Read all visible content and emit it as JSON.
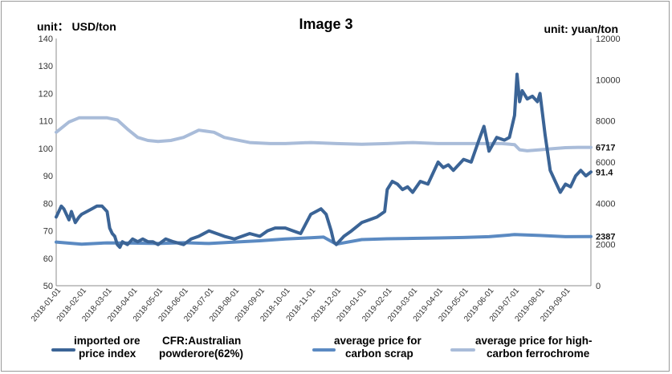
{
  "chart_data": {
    "type": "line",
    "title": "Image 3",
    "left_unit": "unit：  USD/ton",
    "right_unit": "unit: yuan/ton",
    "left_axis": {
      "min": 50,
      "max": 140,
      "step": 10,
      "ticks": [
        "140",
        "130",
        "120",
        "110",
        "100",
        "90",
        "80",
        "70",
        "60",
        "50"
      ]
    },
    "right_axis": {
      "min": 0,
      "max": 12000,
      "step": 2000,
      "ticks": [
        "12000",
        "10000",
        "8000",
        "6000",
        "4000",
        "2000",
        "0"
      ]
    },
    "categories": [
      "2018-01-01",
      "2018-02-01",
      "2018-03-01",
      "2018-04-01",
      "2018-05-01",
      "2018-06-01",
      "2018-07-01",
      "2018-08-01",
      "2018-09-01",
      "2018-10-01",
      "2018-11-01",
      "2018-12-01",
      "2019-01-01",
      "2019-02-01",
      "2019-03-01",
      "2019-04-01",
      "2019-05-01",
      "2019-06-01",
      "2019-07-01",
      "2019-08-01",
      "2019-09-01"
    ],
    "series": [
      {
        "name": "imported ore price index",
        "legend_lines": [
          "imported ore",
          "price index"
        ],
        "axis": "left",
        "color": "#3b6496",
        "end_label": "91.4",
        "x": [
          0.0,
          0.1,
          0.2,
          0.3,
          0.4,
          0.5,
          0.6,
          0.75,
          0.9,
          1.0,
          1.2,
          1.4,
          1.6,
          1.8,
          2.0,
          2.1,
          2.2,
          2.3,
          2.4,
          2.5,
          2.6,
          2.8,
          3.0,
          3.2,
          3.4,
          3.6,
          3.8,
          4.0,
          4.3,
          4.6,
          5.0,
          5.3,
          5.6,
          6.0,
          6.3,
          6.6,
          7.0,
          7.3,
          7.6,
          8.0,
          8.3,
          8.6,
          9.0,
          9.3,
          9.6,
          10.0,
          10.2,
          10.4,
          10.6,
          10.8,
          10.9,
          11.0,
          11.1,
          11.3,
          11.6,
          12.0,
          12.3,
          12.6,
          12.9,
          13.0,
          13.2,
          13.4,
          13.6,
          13.8,
          14.0,
          14.3,
          14.6,
          15.0,
          15.2,
          15.4,
          15.6,
          16.0,
          16.3,
          16.6,
          16.8,
          17.0,
          17.3,
          17.6,
          17.8,
          18.0,
          18.1,
          18.2,
          18.3,
          18.5,
          18.7,
          18.9,
          19.0,
          19.2,
          19.4,
          19.6,
          19.8,
          20.0,
          20.2,
          20.4,
          20.6,
          20.8,
          21.0
        ],
        "values": [
          75,
          77,
          79,
          78,
          76,
          74,
          77,
          73,
          75,
          76,
          77,
          78,
          79,
          79,
          77,
          71,
          69,
          68,
          65,
          64,
          66,
          65,
          67,
          66,
          67,
          66,
          66,
          65,
          67,
          66,
          65,
          67,
          68,
          70,
          69,
          68,
          67,
          68,
          69,
          68,
          70,
          71,
          71,
          70,
          69,
          76,
          77,
          78,
          76,
          70,
          66,
          65,
          66,
          68,
          70,
          73,
          74,
          75,
          77,
          85,
          88,
          87,
          85,
          86,
          84,
          88,
          87,
          95,
          93,
          94,
          92,
          96,
          95,
          103,
          108,
          99,
          104,
          103,
          104,
          112,
          127,
          117,
          121,
          118,
          119,
          117,
          120,
          105,
          92,
          88,
          84,
          87,
          86,
          90,
          92,
          90,
          91.4
        ]
      },
      {
        "name": "CFR:Australian powderore(62%)",
        "legend_lines": [
          "CFR:Australian",
          "powderore(62%)"
        ],
        "axis": "left"
      },
      {
        "name": "average price for carbon scrap",
        "legend_lines": [
          "average price for",
          "carbon scrap"
        ],
        "axis": "right",
        "color": "#5b8ac2",
        "end_label": "2387",
        "x": [
          0,
          1,
          2,
          3,
          4,
          5,
          6,
          7,
          8,
          9,
          10,
          10.5,
          11,
          12,
          13,
          14,
          15,
          16,
          17,
          18,
          19,
          20,
          21
        ],
        "values": [
          2120,
          2020,
          2080,
          2070,
          2050,
          2090,
          2050,
          2120,
          2180,
          2270,
          2330,
          2360,
          2020,
          2240,
          2280,
          2300,
          2320,
          2340,
          2380,
          2480,
          2440,
          2380,
          2387
        ]
      },
      {
        "name": "average price for high-carbon ferrochrome",
        "legend_lines": [
          "average price for high-",
          "carbon ferrochrome"
        ],
        "axis": "right",
        "color": "#a9bcd9",
        "end_label": "6717",
        "x": [
          0,
          0.5,
          0.9,
          1.4,
          2.0,
          2.4,
          2.8,
          3.2,
          3.6,
          4.0,
          4.5,
          5.0,
          5.6,
          6.2,
          6.6,
          7.0,
          7.6,
          8.4,
          9.0,
          10.0,
          11.0,
          12.0,
          13.0,
          14.0,
          15.0,
          16.0,
          17.0,
          17.5,
          18.0,
          18.2,
          18.5,
          19.0,
          19.5,
          20.0,
          20.5,
          21.0
        ],
        "values": [
          7450,
          7950,
          8150,
          8150,
          8150,
          8050,
          7600,
          7200,
          7050,
          7000,
          7050,
          7200,
          7550,
          7450,
          7200,
          7100,
          6950,
          6900,
          6900,
          6950,
          6900,
          6870,
          6900,
          6950,
          6900,
          6900,
          6900,
          6900,
          6850,
          6600,
          6550,
          6600,
          6650,
          6700,
          6717,
          6717
        ]
      }
    ]
  }
}
